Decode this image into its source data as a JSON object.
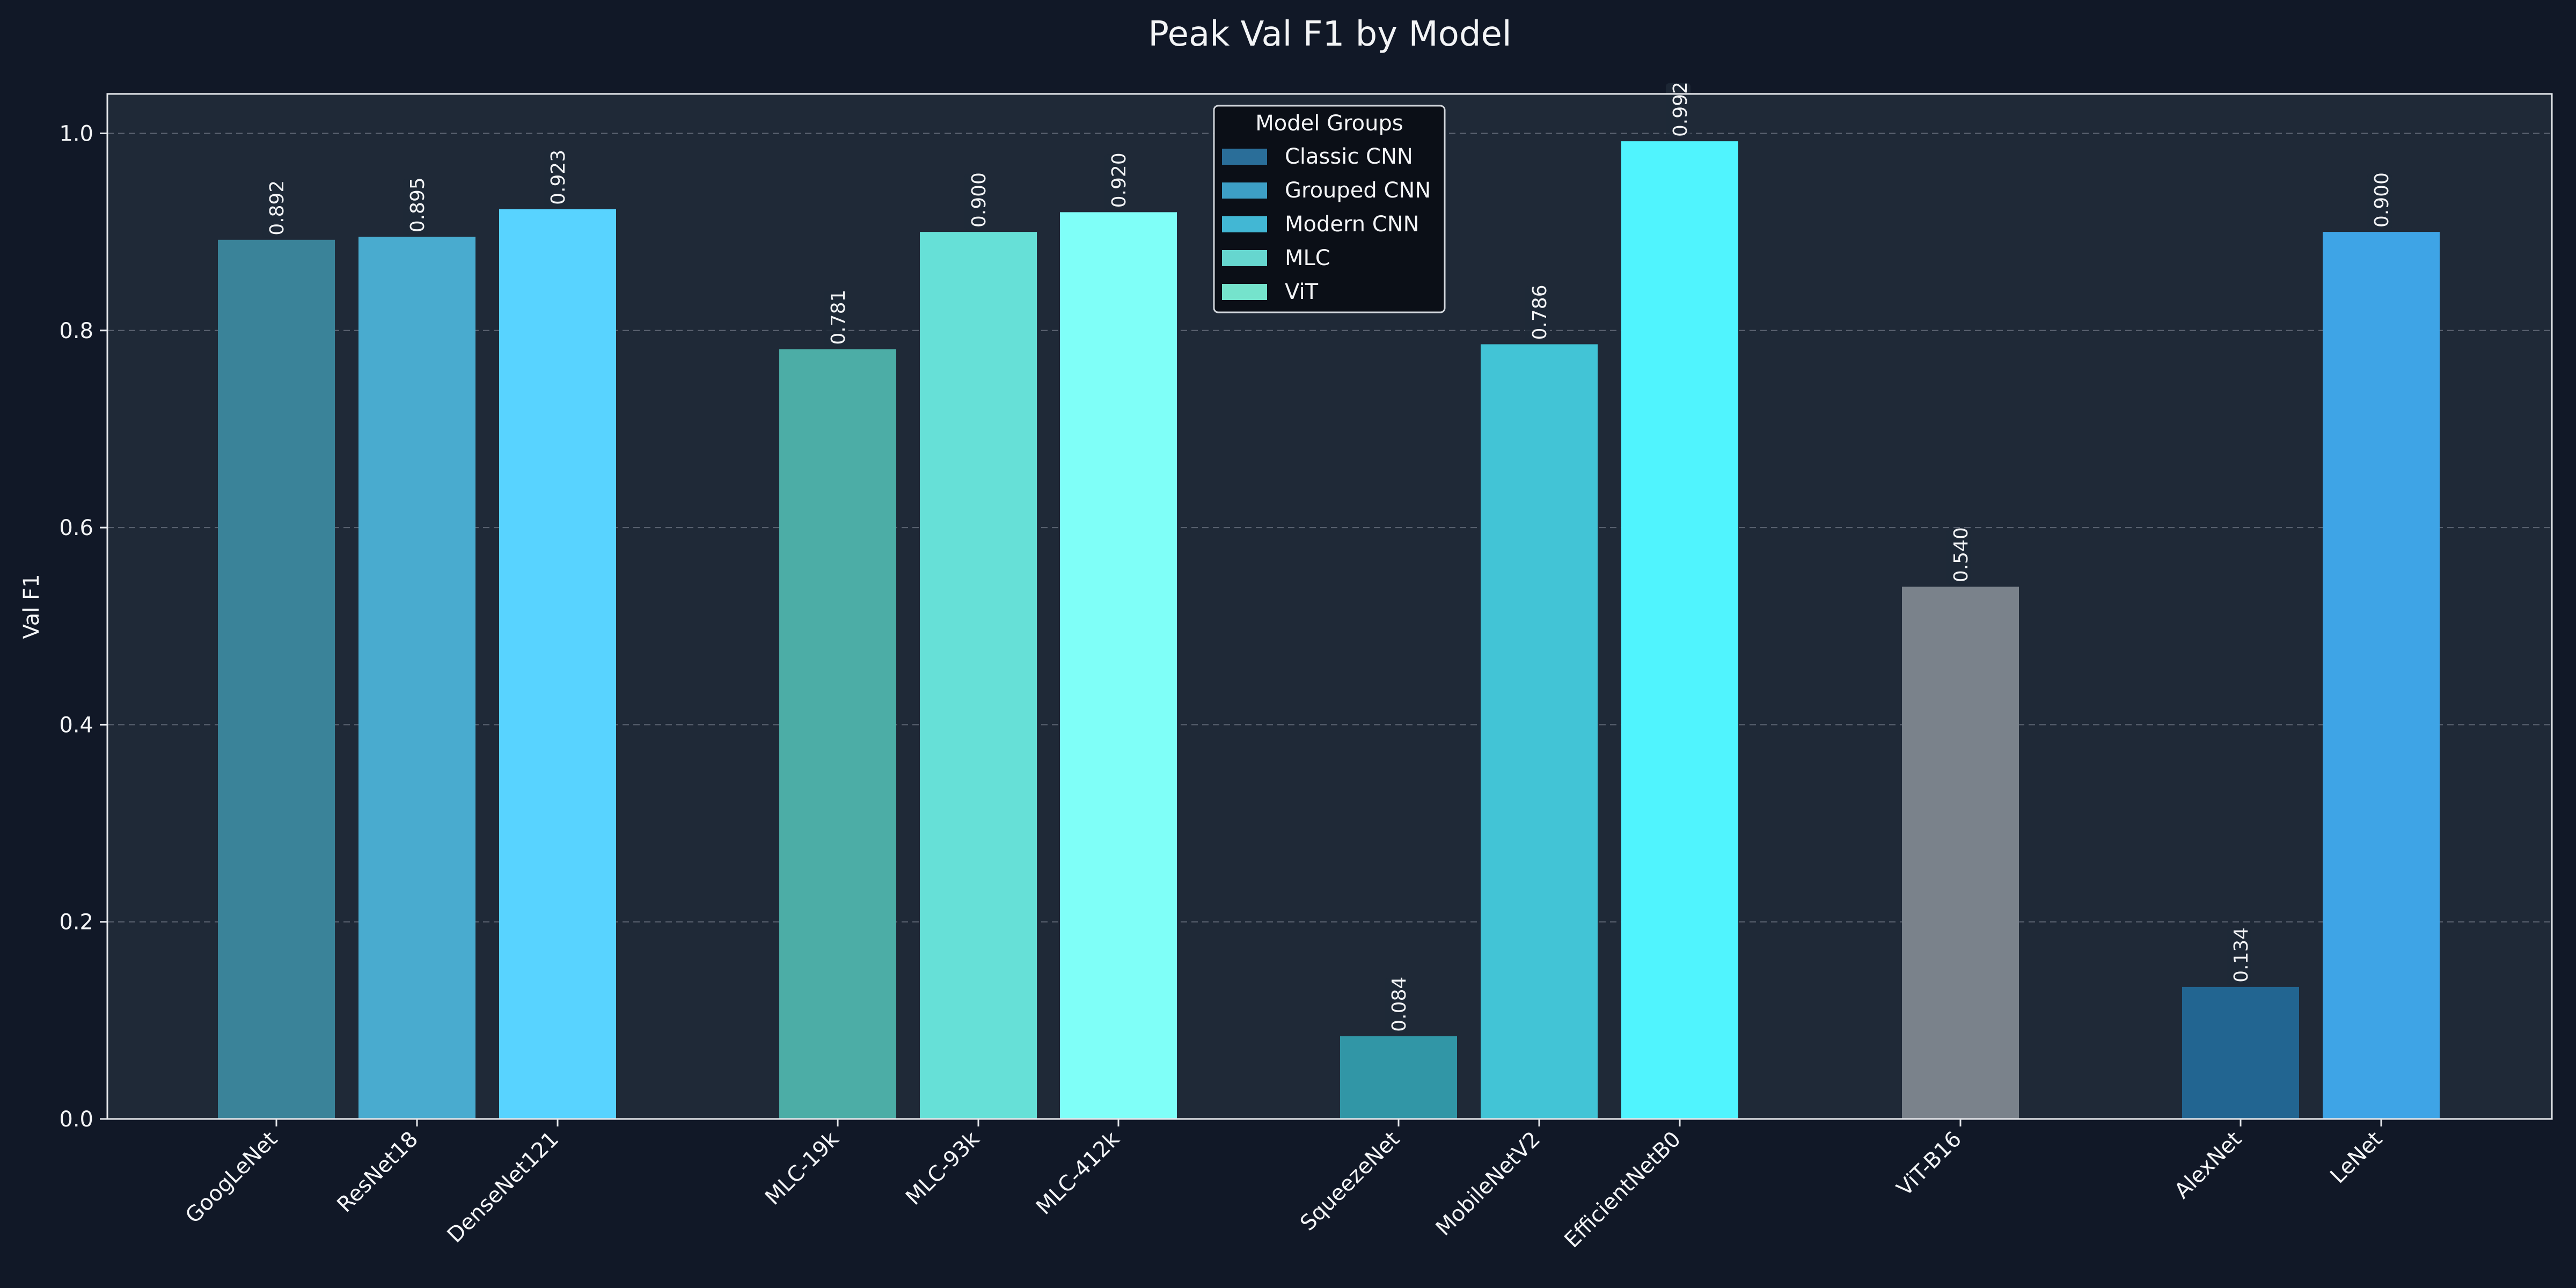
{
  "chart_data": {
    "type": "bar",
    "title": "Peak Val F1 by Model",
    "xlabel": "",
    "ylabel": "Val F1",
    "ylim": [
      0,
      1.04
    ],
    "yticks": [
      "0.0",
      "0.2",
      "0.4",
      "0.6",
      "0.8",
      "1.0"
    ],
    "grid": true,
    "categories": [
      "GoogLeNet",
      "ResNet18",
      "DenseNet121",
      "MLC-19k",
      "MLC-93k",
      "MLC-412k",
      "SqueezeNet",
      "MobileNetV2",
      "EfficientNetB0",
      "ViT-B16",
      "AlexNet",
      "LeNet"
    ],
    "values": [
      0.892,
      0.895,
      0.923,
      0.781,
      0.9,
      0.92,
      0.084,
      0.786,
      0.992,
      0.54,
      0.134,
      0.9
    ],
    "value_labels": [
      "0.892",
      "0.895",
      "0.923",
      "0.781",
      "0.900",
      "0.920",
      "0.084",
      "0.786",
      "0.992",
      "0.540",
      "0.134",
      "0.900"
    ],
    "bar_colors": [
      "#3A8399",
      "#49ABCF",
      "#58D3FF",
      "#4CADA6",
      "#66E0D7",
      "#7FFFF8",
      "#3196A6",
      "#42C4D6",
      "#50F4FE",
      "#7A828B",
      "#226591",
      "#3EA4E6"
    ],
    "legend": {
      "title": "Model Groups",
      "position": "top-center",
      "entries": [
        {
          "label": "Classic CNN",
          "color": "#2A6E99"
        },
        {
          "label": "Grouped CNN",
          "color": "#3D9FC6"
        },
        {
          "label": "Modern CNN",
          "color": "#42B7D4"
        },
        {
          "label": "MLC",
          "color": "#66D6CF"
        },
        {
          "label": "ViT",
          "color": "#75E3CC"
        }
      ]
    },
    "colors": {
      "figure_bg": "#111827",
      "axes_bg": "#1F2937",
      "text": "#F3F4F6",
      "grid": "#6B7280",
      "legend_bg": "#0B0F17"
    }
  }
}
